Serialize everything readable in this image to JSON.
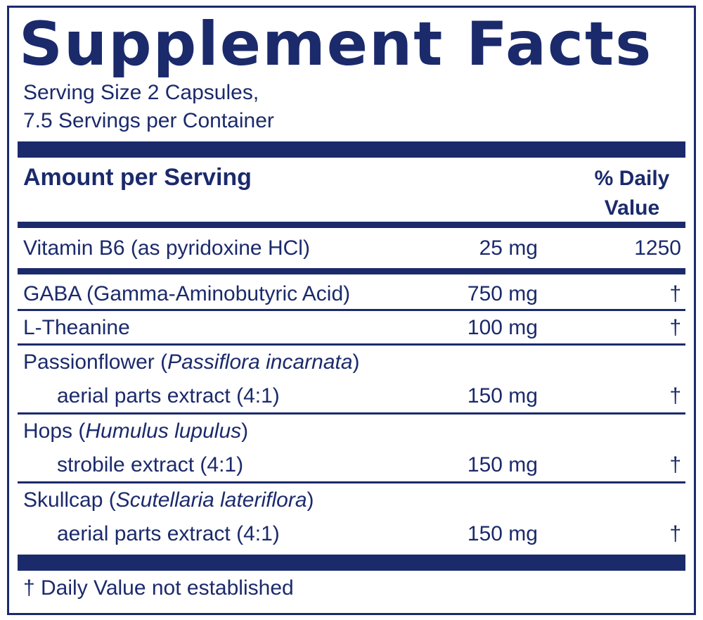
{
  "title": "Supplement Facts",
  "serving_size": "Serving Size 2 Capsules,",
  "servings_per_container": "7.5 Servings per Container",
  "header": {
    "amount_per_serving": "Amount per Serving",
    "daily_value_line1": "% Daily",
    "daily_value_line2": "Value"
  },
  "rows": [
    {
      "name": "Vitamin B6 (as pyridoxine HCl)",
      "amount": "25  mg",
      "dv": "1250"
    },
    {
      "name": "GABA (Gamma-Aminobutyric Acid)",
      "amount": "750  mg",
      "dv": "†"
    },
    {
      "name": "L-Theanine",
      "amount": "100  mg",
      "dv": "†"
    },
    {
      "name": "Passionflower (",
      "latin": "Passiflora incarnata",
      "close": ")",
      "sub": "aerial parts extract (4:1)",
      "amount": "150  mg",
      "dv": "†"
    },
    {
      "name": "Hops (",
      "latin": "Humulus lupulus",
      "close": ")",
      "sub": "strobile extract (4:1)",
      "amount": "150  mg",
      "dv": "†"
    },
    {
      "name": "Skullcap (",
      "latin": "Scutellaria lateriflora",
      "close": ")",
      "sub": "aerial parts extract (4:1)",
      "amount": "150  mg",
      "dv": "†"
    }
  ],
  "footnote": "† Daily Value not established",
  "colors": {
    "ink": "#1b2a6b",
    "background": "#ffffff"
  }
}
